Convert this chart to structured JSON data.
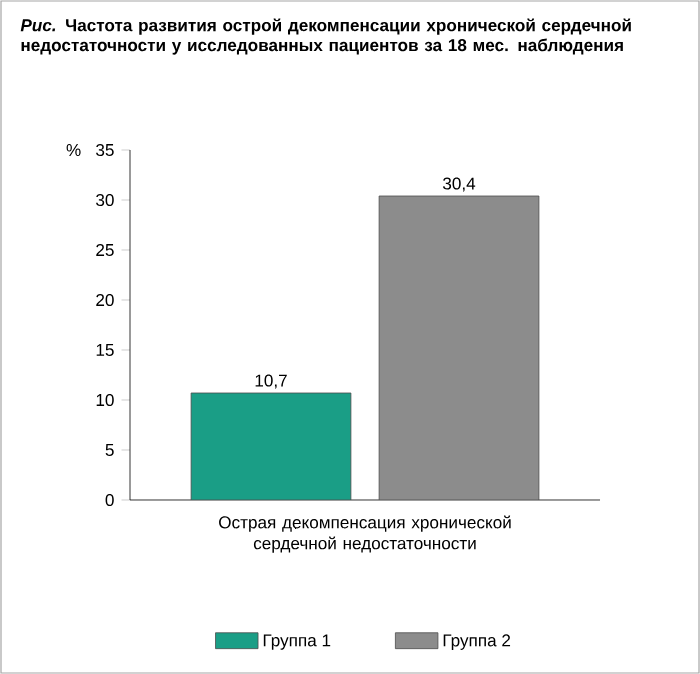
{
  "chart_data": {
    "type": "bar",
    "title": "*Рис.* Частота развития острой декомпенсации хронической сердечной недостаточности у исследованных пациентов за 18 мес. наблюдения",
    "ylabel": "%",
    "categories": [
      "Острая декомпенсация хронической сердечной недостаточности"
    ],
    "series": [
      {
        "name": "Группа 1",
        "color": "#1a9e86",
        "values": [
          10.7
        ],
        "value_labels": [
          "10,7"
        ]
      },
      {
        "name": "Группа 2",
        "color": "#8c8c8c",
        "values": [
          30.4
        ],
        "value_labels": [
          "30,4"
        ]
      }
    ],
    "ylim": [
      0,
      35
    ],
    "yticks": [
      0,
      5,
      10,
      15,
      20,
      25,
      30,
      35
    ],
    "legend": "bottom"
  }
}
